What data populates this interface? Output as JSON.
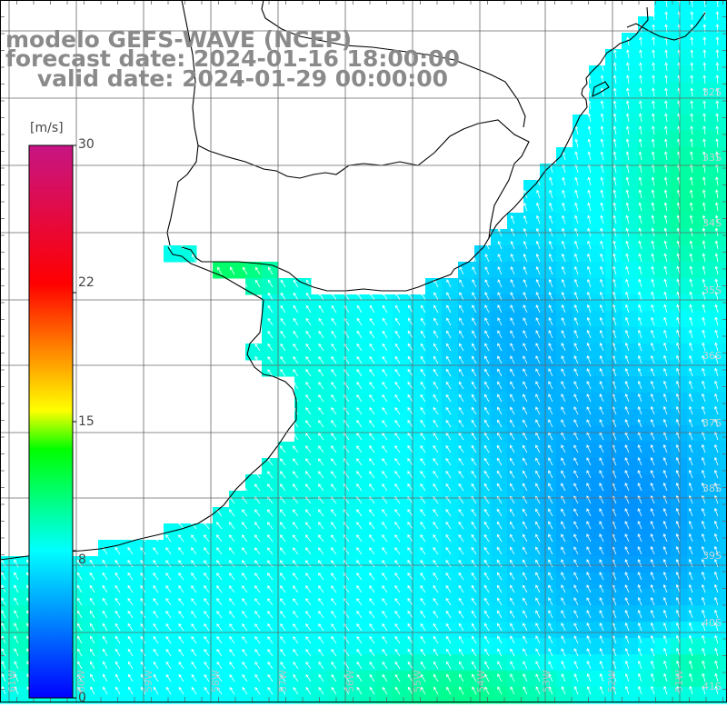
{
  "title": {
    "line1": "modelo GEFS-WAVE (NCEP)",
    "line2": "forecast date: 2024-01-16 18:00:00",
    "line3": "    valid date: 2024-01-29 00:00:00"
  },
  "colorbar": {
    "unit": "[m/s]",
    "min": 0,
    "max": 30,
    "ticks": [
      {
        "label": "30",
        "value": 30
      },
      {
        "label": "22",
        "value": 22
      },
      {
        "label": "15",
        "value": 15
      },
      {
        "label": "8",
        "value": 8
      },
      {
        "label": "0",
        "value": 0
      }
    ],
    "colors": [
      "#0000ff",
      "#00ffff",
      "#00ff00",
      "#ffff00",
      "#ff0000",
      "#c71585"
    ]
  },
  "lat_labels": [
    "32S",
    "33S",
    "34S",
    "35S",
    "36S",
    "37S",
    "38S",
    "39S",
    "40S",
    "41S"
  ],
  "lon_labels": [
    "61W",
    "60W",
    "59W",
    "58W",
    "57W",
    "56W",
    "55W",
    "54W",
    "53W",
    "52W",
    "51W"
  ],
  "map": {
    "field": "wind speed",
    "arrow_direction": "toward north-west",
    "land_color": "#ffffff",
    "grid_color": "#666666",
    "coast_color": "#000000",
    "arrow_color": "#ffffff"
  }
}
